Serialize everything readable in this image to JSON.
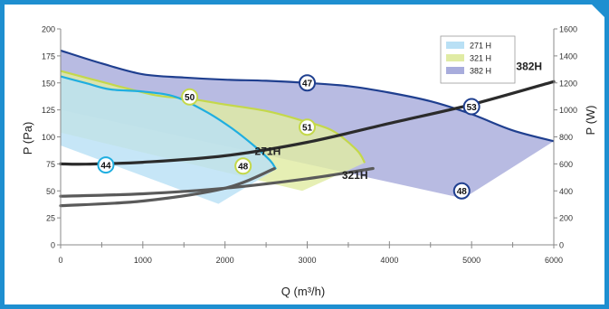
{
  "chart_data": {
    "type": "area",
    "xlabel": "Q (m³/h)",
    "ylabel_left": "P (Pa)",
    "ylabel_right": "P (W)",
    "xlim": [
      0,
      6000
    ],
    "ylim_left": [
      0,
      200
    ],
    "ylim_right": [
      0,
      1600
    ],
    "x_ticks": [
      0,
      1000,
      2000,
      3000,
      4000,
      5000,
      6000
    ],
    "y_left_ticks": [
      0,
      25,
      50,
      75,
      100,
      125,
      150,
      175,
      200
    ],
    "y_right_ticks": [
      0,
      200,
      400,
      600,
      800,
      1000,
      1200,
      1400,
      1600
    ],
    "grid": false,
    "legend_position": "top-right",
    "legend": [
      {
        "label": "271 H",
        "color": "#b9e0f5"
      },
      {
        "label": "321 H",
        "color": "#e0eba4"
      },
      {
        "label": "382 H",
        "color": "#a8acdc"
      }
    ],
    "areas": [
      {
        "name": "382 H",
        "color": "#a8acdc",
        "outline_color": "#1f3f8f",
        "points": [
          [
            0,
            180
          ],
          [
            500,
            168
          ],
          [
            1000,
            158
          ],
          [
            1500,
            155
          ],
          [
            2000,
            153
          ],
          [
            2500,
            152
          ],
          [
            3000,
            150
          ],
          [
            3500,
            147
          ],
          [
            4000,
            141
          ],
          [
            4500,
            133
          ],
          [
            5000,
            121
          ],
          [
            5500,
            106
          ],
          [
            6000,
            96
          ],
          [
            4900,
            43
          ],
          [
            0,
            125
          ]
        ]
      },
      {
        "name": "321 H",
        "color": "#e0eba4",
        "outline_color": "#c4d84a",
        "points": [
          [
            0,
            161
          ],
          [
            300,
            155
          ],
          [
            800,
            145
          ],
          [
            1200,
            138
          ],
          [
            1600,
            135
          ],
          [
            2000,
            130
          ],
          [
            2500,
            124
          ],
          [
            2900,
            116
          ],
          [
            3300,
            106
          ],
          [
            3600,
            88
          ],
          [
            3700,
            76
          ],
          [
            2940,
            50
          ],
          [
            0,
            104
          ]
        ]
      },
      {
        "name": "271 H",
        "color": "#b9e0f5",
        "outline_color": "#1faee0",
        "points": [
          [
            0,
            156
          ],
          [
            300,
            150
          ],
          [
            600,
            144
          ],
          [
            1000,
            142
          ],
          [
            1400,
            137
          ],
          [
            1800,
            122
          ],
          [
            2100,
            107
          ],
          [
            2350,
            92
          ],
          [
            2550,
            78
          ],
          [
            2620,
            70
          ],
          [
            1920,
            38
          ],
          [
            0,
            92
          ]
        ]
      }
    ],
    "power_curves": [
      {
        "name": "382H",
        "points": [
          [
            0,
            600
          ],
          [
            300,
            598
          ],
          [
            1000,
            612
          ],
          [
            2000,
            660
          ],
          [
            3000,
            760
          ],
          [
            4000,
            900
          ],
          [
            5000,
            1040
          ],
          [
            6000,
            1210
          ]
        ]
      },
      {
        "name": "321H",
        "points": [
          [
            0,
            360
          ],
          [
            1000,
            378
          ],
          [
            2000,
            420
          ],
          [
            3000,
            490
          ],
          [
            3800,
            566
          ]
        ]
      },
      {
        "name": "271H",
        "points": [
          [
            0,
            290
          ],
          [
            1000,
            325
          ],
          [
            2000,
            420
          ],
          [
            2600,
            565
          ]
        ]
      }
    ],
    "curve_labels": [
      {
        "text": "382H",
        "x": 5700,
        "y": 1295
      },
      {
        "text": "321H",
        "x": 3580,
        "y": 490
      },
      {
        "text": "271H",
        "x": 2520,
        "y": 665
      }
    ],
    "efficiency_markers": [
      {
        "value": "44",
        "x": 550,
        "y": 74,
        "color": "#1faee0"
      },
      {
        "value": "50",
        "x": 1570,
        "y": 137,
        "color": "#c4d84a"
      },
      {
        "value": "48",
        "x": 2220,
        "y": 73,
        "color": "#c4d84a"
      },
      {
        "value": "51",
        "x": 3000,
        "y": 109,
        "color": "#c4d84a"
      },
      {
        "value": "47",
        "x": 3000,
        "y": 150,
        "color": "#1f3f8f"
      },
      {
        "value": "53",
        "x": 5000,
        "y": 128,
        "color": "#1f3f8f"
      },
      {
        "value": "48",
        "x": 4880,
        "y": 50,
        "color": "#1f3f8f"
      }
    ]
  }
}
